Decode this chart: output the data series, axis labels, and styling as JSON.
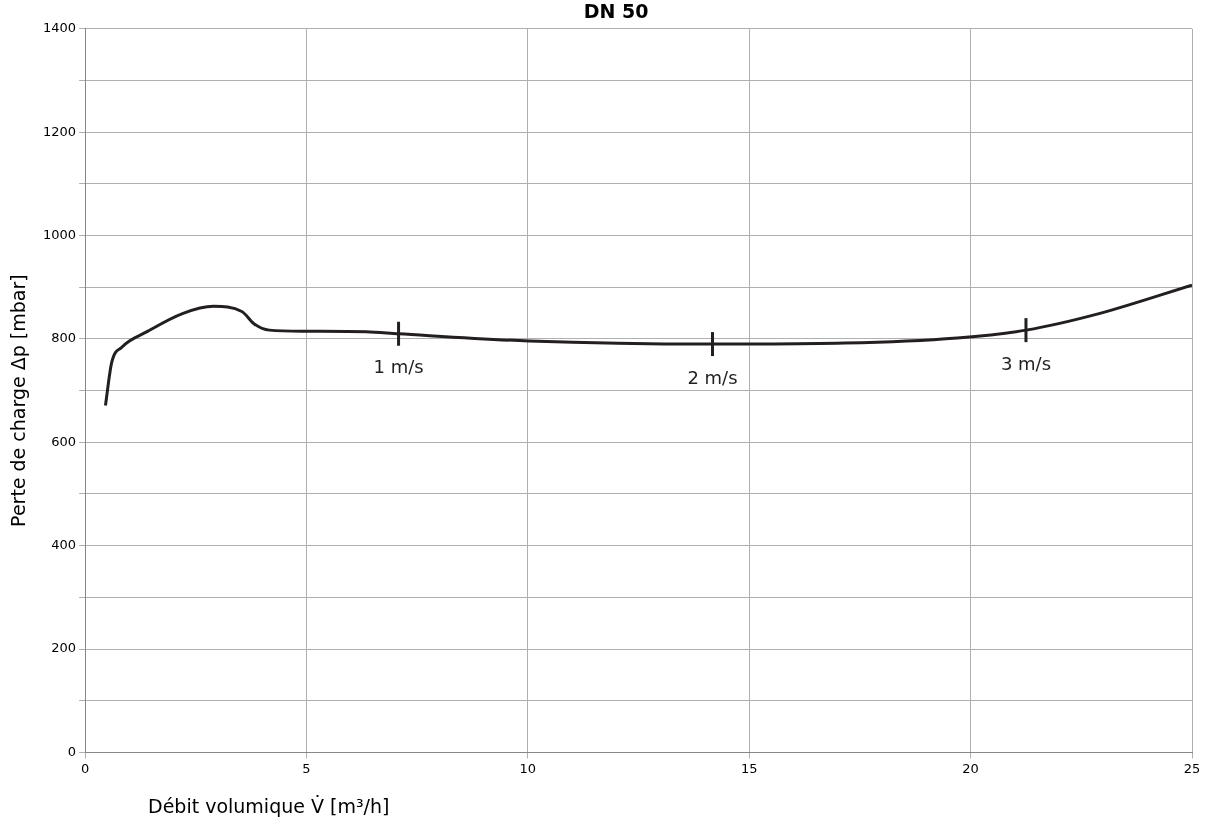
{
  "chart_data": {
    "type": "line",
    "title": "DN 50",
    "xlabel": "Débit volumique V̇ [m³/h]",
    "ylabel": "Perte de charge Δp [mbar]",
    "xlim": [
      0,
      25
    ],
    "xticks": [
      0,
      5,
      10,
      15,
      20,
      25
    ],
    "ylim": [
      0,
      1400
    ],
    "yticks": [
      0,
      {
        "value": 100,
        "label": null
      },
      200,
      {
        "value": 300,
        "label": null
      },
      400,
      {
        "value": 500,
        "label": null
      },
      600,
      {
        "value": 700,
        "label": null
      },
      800,
      {
        "value": 900,
        "label": null
      },
      1000,
      {
        "value": 1100,
        "label": null
      },
      1200,
      {
        "value": 1300,
        "label": null
      },
      1400
    ],
    "grid": true,
    "legend": false,
    "marker": "none",
    "line_style": "solid",
    "series": [
      {
        "color": "#231f20",
        "x": [
          0.46,
          0.6,
          0.83,
          1.4,
          2.2,
          2.9,
          3.54,
          3.82,
          4.16,
          4.97,
          6.35,
          7.08,
          10.03,
          14.17,
          17.16,
          19.7,
          21.25,
          22.9,
          25
        ],
        "values": [
          671,
          754,
          784,
          814,
          849,
          863,
          853,
          829,
          817,
          815,
          814,
          810,
          796,
          790,
          792,
          802,
          817,
          849,
          904
        ]
      }
    ],
    "annotations": [
      {
        "text": "1 m/s",
        "x": 7.08,
        "y": 810
      },
      {
        "text": "2 m/s",
        "x": 14.17,
        "y": 790
      },
      {
        "text": "3 m/s",
        "x": 21.25,
        "y": 817
      }
    ]
  }
}
